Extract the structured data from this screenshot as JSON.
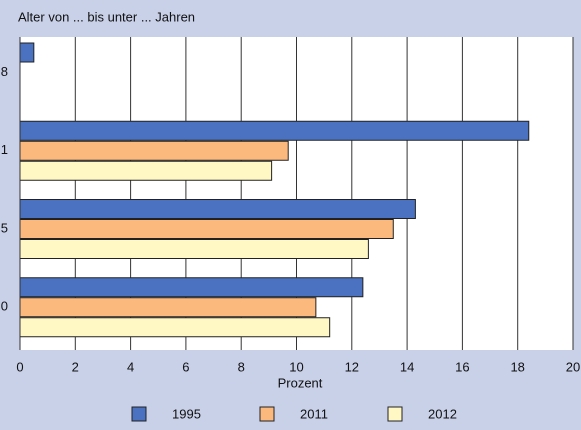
{
  "chart_data": {
    "type": "bar",
    "orientation": "horizontal",
    "title": "Alter von ... bis unter ... Jahren",
    "x_label": "Prozent",
    "categories": [
      "8",
      "1",
      "5",
      "0"
    ],
    "series": [
      {
        "name": "1995",
        "color": "#4a72c0",
        "values": [
          0.5,
          18.4,
          14.3,
          12.4
        ]
      },
      {
        "name": "2011",
        "color": "#fcb97d",
        "values": [
          null,
          9.7,
          13.5,
          10.7
        ]
      },
      {
        "name": "2012",
        "color": "#fff8c4",
        "values": [
          null,
          9.1,
          12.6,
          11.2
        ]
      }
    ],
    "xlim": [
      0,
      20
    ],
    "xticks": [
      0,
      2,
      4,
      6,
      8,
      10,
      12,
      14,
      16,
      18,
      20
    ],
    "grid": true,
    "legend": "bottom"
  }
}
